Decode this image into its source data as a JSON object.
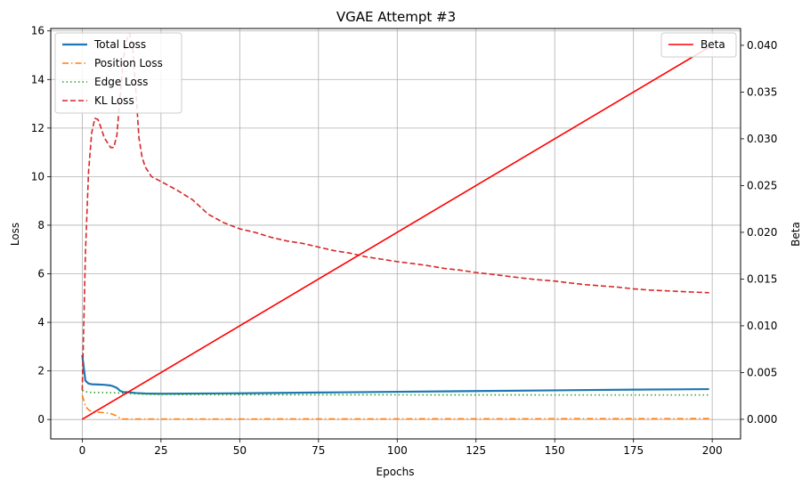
{
  "chart_data": {
    "type": "line",
    "title": "VGAE Attempt #3",
    "xlabel": "Epochs",
    "ylabel": "Loss",
    "y2label": "Beta",
    "xlim": [
      -10,
      209
    ],
    "ylim": [
      -0.8,
      16.1
    ],
    "y2lim": [
      -0.0021,
      0.0418
    ],
    "x_ticks": [
      0,
      25,
      50,
      75,
      100,
      125,
      150,
      175,
      200
    ],
    "y_ticks": [
      0,
      2,
      4,
      6,
      8,
      10,
      12,
      14,
      16
    ],
    "y2_ticks": [
      0.0,
      0.005,
      0.01,
      0.015,
      0.02,
      0.025,
      0.03,
      0.035,
      0.04
    ],
    "y2_tick_labels": [
      "0.000",
      "0.005",
      "0.010",
      "0.015",
      "0.020",
      "0.025",
      "0.030",
      "0.035",
      "0.040"
    ],
    "grid": true,
    "legend_left": "upper-left",
    "legend_right": "upper-right",
    "series": [
      {
        "name": "Total Loss",
        "axis": "left",
        "color": "#1f77b4",
        "style": "solid",
        "points": [
          [
            0,
            2.65
          ],
          [
            1,
            1.6
          ],
          [
            2,
            1.48
          ],
          [
            3,
            1.45
          ],
          [
            5,
            1.44
          ],
          [
            7,
            1.43
          ],
          [
            9,
            1.4
          ],
          [
            10,
            1.36
          ],
          [
            11,
            1.3
          ],
          [
            12,
            1.18
          ],
          [
            13,
            1.13
          ],
          [
            15,
            1.12
          ],
          [
            17,
            1.09
          ],
          [
            20,
            1.07
          ],
          [
            25,
            1.06
          ],
          [
            50,
            1.08
          ],
          [
            75,
            1.11
          ],
          [
            100,
            1.14
          ],
          [
            125,
            1.17
          ],
          [
            150,
            1.2
          ],
          [
            175,
            1.23
          ],
          [
            199,
            1.25
          ]
        ]
      },
      {
        "name": "Position Loss",
        "axis": "left",
        "color": "#ff7f0e",
        "style": "dashdot",
        "points": [
          [
            0,
            1.0
          ],
          [
            1,
            0.55
          ],
          [
            2,
            0.4
          ],
          [
            3,
            0.33
          ],
          [
            5,
            0.3
          ],
          [
            7,
            0.28
          ],
          [
            9,
            0.24
          ],
          [
            10,
            0.2
          ],
          [
            11,
            0.14
          ],
          [
            12,
            0.05
          ],
          [
            13,
            0.02
          ],
          [
            15,
            0.02
          ],
          [
            25,
            0.02
          ],
          [
            50,
            0.02
          ],
          [
            100,
            0.025
          ],
          [
            150,
            0.03
          ],
          [
            199,
            0.035
          ]
        ]
      },
      {
        "name": "Edge Loss",
        "axis": "left",
        "color": "#2ca02c",
        "style": "dotted",
        "points": [
          [
            0,
            1.2
          ],
          [
            1,
            1.15
          ],
          [
            2,
            1.12
          ],
          [
            5,
            1.11
          ],
          [
            10,
            1.1
          ],
          [
            15,
            1.07
          ],
          [
            20,
            1.04
          ],
          [
            25,
            1.03
          ],
          [
            50,
            1.02
          ],
          [
            100,
            1.015
          ],
          [
            150,
            1.01
          ],
          [
            199,
            1.01
          ]
        ]
      },
      {
        "name": "KL Loss",
        "axis": "left",
        "color": "#d62728",
        "style": "dashed",
        "points": [
          [
            0,
            1.2
          ],
          [
            1,
            6.8
          ],
          [
            2,
            10.2
          ],
          [
            3,
            11.8
          ],
          [
            4,
            12.4
          ],
          [
            5,
            12.35
          ],
          [
            6,
            12.0
          ],
          [
            7,
            11.6
          ],
          [
            8,
            11.4
          ],
          [
            9,
            11.2
          ],
          [
            10,
            11.2
          ],
          [
            11,
            11.7
          ],
          [
            12,
            13.3
          ],
          [
            13,
            14.8
          ],
          [
            14,
            15.6
          ],
          [
            15,
            15.9
          ],
          [
            16,
            15.4
          ],
          [
            17,
            13.6
          ],
          [
            18,
            11.6
          ],
          [
            19,
            10.8
          ],
          [
            20,
            10.4
          ],
          [
            22,
            10.0
          ],
          [
            25,
            9.8
          ],
          [
            30,
            9.45
          ],
          [
            35,
            9.05
          ],
          [
            40,
            8.45
          ],
          [
            45,
            8.1
          ],
          [
            50,
            7.85
          ],
          [
            55,
            7.7
          ],
          [
            60,
            7.5
          ],
          [
            65,
            7.35
          ],
          [
            70,
            7.25
          ],
          [
            75,
            7.1
          ],
          [
            80,
            6.95
          ],
          [
            85,
            6.85
          ],
          [
            90,
            6.7
          ],
          [
            95,
            6.6
          ],
          [
            100,
            6.5
          ],
          [
            105,
            6.42
          ],
          [
            110,
            6.33
          ],
          [
            115,
            6.22
          ],
          [
            120,
            6.15
          ],
          [
            125,
            6.05
          ],
          [
            130,
            5.98
          ],
          [
            135,
            5.9
          ],
          [
            140,
            5.82
          ],
          [
            145,
            5.75
          ],
          [
            150,
            5.7
          ],
          [
            155,
            5.62
          ],
          [
            160,
            5.55
          ],
          [
            165,
            5.5
          ],
          [
            170,
            5.45
          ],
          [
            175,
            5.38
          ],
          [
            180,
            5.33
          ],
          [
            185,
            5.3
          ],
          [
            190,
            5.27
          ],
          [
            195,
            5.24
          ],
          [
            199,
            5.22
          ]
        ]
      },
      {
        "name": "Beta",
        "axis": "right",
        "color": "#ff0000",
        "style": "solid",
        "points": [
          [
            0,
            0.0
          ],
          [
            199,
            0.0398
          ]
        ]
      }
    ]
  }
}
